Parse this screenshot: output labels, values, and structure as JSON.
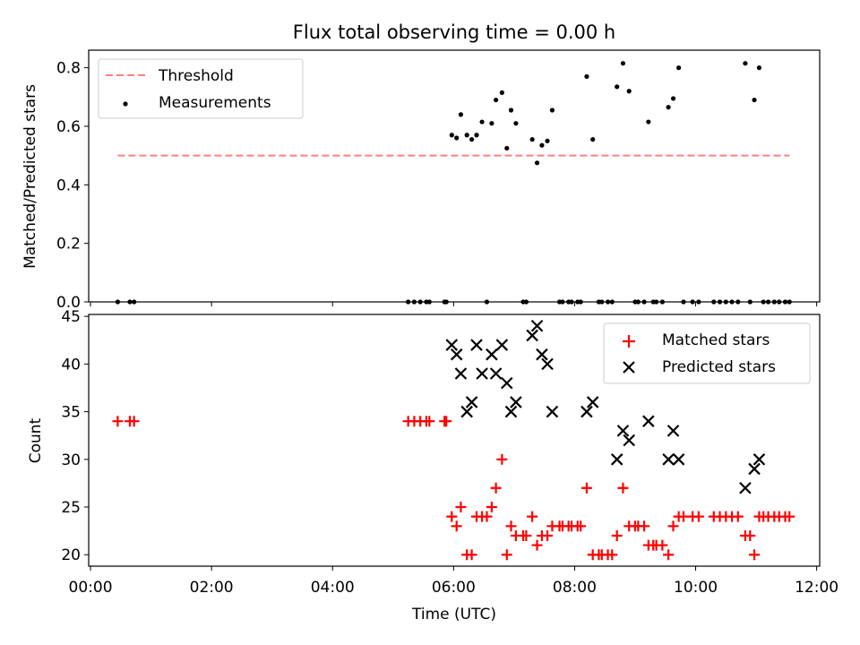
{
  "chart_data": [
    {
      "type": "scatter",
      "title": "Flux total observing time = 0.00 h",
      "xlabel": "",
      "ylabel": "Matched/Predicted stars",
      "xlim": [
        -0.03,
        12.05
      ],
      "ylim": [
        0,
        0.86
      ],
      "yticks": [
        0.0,
        0.2,
        0.4,
        0.6,
        0.8
      ],
      "ytick_labels": [
        "0.0",
        "0.2",
        "0.4",
        "0.6",
        "0.8"
      ],
      "xticks": [
        0,
        2,
        4,
        6,
        8,
        10,
        12
      ],
      "legend": {
        "position": "top-left",
        "entries": [
          "Threshold",
          "Measurements"
        ]
      },
      "threshold": {
        "name": "Threshold",
        "value": 0.5,
        "x_start": 0.45,
        "x_end": 11.55,
        "color": "#ff7f7f"
      },
      "measurements": {
        "name": "Measurements",
        "color": "#000000",
        "points": [
          [
            0.45,
            0
          ],
          [
            0.65,
            0
          ],
          [
            0.72,
            0
          ],
          [
            5.25,
            0
          ],
          [
            5.35,
            0
          ],
          [
            5.45,
            0
          ],
          [
            5.55,
            0
          ],
          [
            5.6,
            0
          ],
          [
            5.85,
            0
          ],
          [
            5.88,
            0
          ],
          [
            5.97,
            0.57
          ],
          [
            6.05,
            0.56
          ],
          [
            6.12,
            0.64
          ],
          [
            6.22,
            0.57
          ],
          [
            6.3,
            0.555
          ],
          [
            6.38,
            0.57
          ],
          [
            6.47,
            0.615
          ],
          [
            6.55,
            0
          ],
          [
            6.63,
            0.61
          ],
          [
            6.7,
            0.69
          ],
          [
            6.8,
            0.715
          ],
          [
            6.88,
            0.525
          ],
          [
            6.95,
            0.655
          ],
          [
            7.03,
            0.61
          ],
          [
            7.15,
            0
          ],
          [
            7.2,
            0
          ],
          [
            7.3,
            0.555
          ],
          [
            7.38,
            0.475
          ],
          [
            7.46,
            0.535
          ],
          [
            7.55,
            0.55
          ],
          [
            7.63,
            0.655
          ],
          [
            7.75,
            0
          ],
          [
            7.8,
            0
          ],
          [
            7.9,
            0
          ],
          [
            7.95,
            0
          ],
          [
            8.05,
            0
          ],
          [
            8.1,
            0
          ],
          [
            8.2,
            0.77
          ],
          [
            8.3,
            0.555
          ],
          [
            8.4,
            0
          ],
          [
            8.45,
            0
          ],
          [
            8.55,
            0
          ],
          [
            8.62,
            0
          ],
          [
            8.7,
            0.735
          ],
          [
            8.8,
            0.815
          ],
          [
            8.9,
            0.72
          ],
          [
            9.0,
            0
          ],
          [
            9.05,
            0
          ],
          [
            9.15,
            0
          ],
          [
            9.22,
            0.615
          ],
          [
            9.3,
            0
          ],
          [
            9.35,
            0
          ],
          [
            9.45,
            0
          ],
          [
            9.55,
            0.665
          ],
          [
            9.63,
            0.695
          ],
          [
            9.72,
            0.8
          ],
          [
            9.8,
            0
          ],
          [
            9.95,
            0
          ],
          [
            10.05,
            0
          ],
          [
            10.3,
            0
          ],
          [
            10.4,
            0
          ],
          [
            10.5,
            0
          ],
          [
            10.6,
            0
          ],
          [
            10.7,
            0
          ],
          [
            10.82,
            0.815
          ],
          [
            10.9,
            0
          ],
          [
            10.97,
            0.69
          ],
          [
            11.05,
            0.8
          ],
          [
            11.12,
            0
          ],
          [
            11.2,
            0
          ],
          [
            11.3,
            0
          ],
          [
            11.38,
            0
          ],
          [
            11.48,
            0
          ],
          [
            11.55,
            0
          ]
        ]
      }
    },
    {
      "type": "scatter",
      "title": "",
      "xlabel": "Time (UTC)",
      "ylabel": "Count",
      "xlim": [
        -0.03,
        12.05
      ],
      "ylim": [
        18.8,
        45.2
      ],
      "yticks": [
        20,
        25,
        30,
        35,
        40,
        45
      ],
      "ytick_labels": [
        "20",
        "25",
        "30",
        "35",
        "40",
        "45"
      ],
      "xticks": [
        0,
        2,
        4,
        6,
        8,
        10,
        12
      ],
      "xtick_labels": [
        "00:00",
        "02:00",
        "04:00",
        "06:00",
        "08:00",
        "10:00",
        "12:00"
      ],
      "legend": {
        "position": "top-right",
        "entries": [
          "Matched stars",
          "Predicted stars"
        ]
      },
      "series": [
        {
          "name": "Matched stars",
          "marker": "plus",
          "color": "#ff0000",
          "points": [
            [
              0.45,
              34
            ],
            [
              0.65,
              34
            ],
            [
              0.72,
              34
            ],
            [
              5.25,
              34
            ],
            [
              5.35,
              34
            ],
            [
              5.45,
              34
            ],
            [
              5.55,
              34
            ],
            [
              5.6,
              34
            ],
            [
              5.85,
              34
            ],
            [
              5.88,
              34
            ],
            [
              5.97,
              24
            ],
            [
              6.05,
              23
            ],
            [
              6.12,
              25
            ],
            [
              6.22,
              20
            ],
            [
              6.3,
              20
            ],
            [
              6.38,
              24
            ],
            [
              6.47,
              24
            ],
            [
              6.55,
              24
            ],
            [
              6.63,
              25
            ],
            [
              6.7,
              27
            ],
            [
              6.8,
              30
            ],
            [
              6.88,
              20
            ],
            [
              6.95,
              23
            ],
            [
              7.03,
              22
            ],
            [
              7.15,
              22
            ],
            [
              7.2,
              22
            ],
            [
              7.3,
              24
            ],
            [
              7.38,
              21
            ],
            [
              7.46,
              22
            ],
            [
              7.55,
              22
            ],
            [
              7.63,
              23
            ],
            [
              7.75,
              23
            ],
            [
              7.8,
              23
            ],
            [
              7.9,
              23
            ],
            [
              7.95,
              23
            ],
            [
              8.05,
              23
            ],
            [
              8.1,
              23
            ],
            [
              8.2,
              27
            ],
            [
              8.3,
              20
            ],
            [
              8.4,
              20
            ],
            [
              8.45,
              20
            ],
            [
              8.55,
              20
            ],
            [
              8.62,
              20
            ],
            [
              8.7,
              22
            ],
            [
              8.8,
              27
            ],
            [
              8.9,
              23
            ],
            [
              9.0,
              23
            ],
            [
              9.05,
              23
            ],
            [
              9.15,
              23
            ],
            [
              9.22,
              21
            ],
            [
              9.3,
              21
            ],
            [
              9.35,
              21
            ],
            [
              9.45,
              21
            ],
            [
              9.55,
              20
            ],
            [
              9.63,
              23
            ],
            [
              9.72,
              24
            ],
            [
              9.8,
              24
            ],
            [
              9.95,
              24
            ],
            [
              10.05,
              24
            ],
            [
              10.3,
              24
            ],
            [
              10.4,
              24
            ],
            [
              10.5,
              24
            ],
            [
              10.6,
              24
            ],
            [
              10.7,
              24
            ],
            [
              10.82,
              22
            ],
            [
              10.9,
              22
            ],
            [
              10.97,
              20
            ],
            [
              11.05,
              24
            ],
            [
              11.12,
              24
            ],
            [
              11.2,
              24
            ],
            [
              11.3,
              24
            ],
            [
              11.38,
              24
            ],
            [
              11.48,
              24
            ],
            [
              11.55,
              24
            ]
          ]
        },
        {
          "name": "Predicted stars",
          "marker": "x",
          "color": "#000000",
          "points": [
            [
              5.97,
              42
            ],
            [
              6.05,
              41
            ],
            [
              6.12,
              39
            ],
            [
              6.22,
              35
            ],
            [
              6.3,
              36
            ],
            [
              6.38,
              42
            ],
            [
              6.47,
              39
            ],
            [
              6.63,
              41
            ],
            [
              6.7,
              39
            ],
            [
              6.8,
              42
            ],
            [
              6.88,
              38
            ],
            [
              6.95,
              35
            ],
            [
              7.03,
              36
            ],
            [
              7.3,
              43
            ],
            [
              7.38,
              44
            ],
            [
              7.46,
              41
            ],
            [
              7.55,
              40
            ],
            [
              7.63,
              35
            ],
            [
              8.2,
              35
            ],
            [
              8.3,
              36
            ],
            [
              8.7,
              30
            ],
            [
              8.8,
              33
            ],
            [
              8.9,
              32
            ],
            [
              9.22,
              34
            ],
            [
              9.55,
              30
            ],
            [
              9.63,
              33
            ],
            [
              9.72,
              30
            ],
            [
              10.82,
              27
            ],
            [
              10.97,
              29
            ],
            [
              11.05,
              30
            ]
          ]
        }
      ]
    }
  ]
}
